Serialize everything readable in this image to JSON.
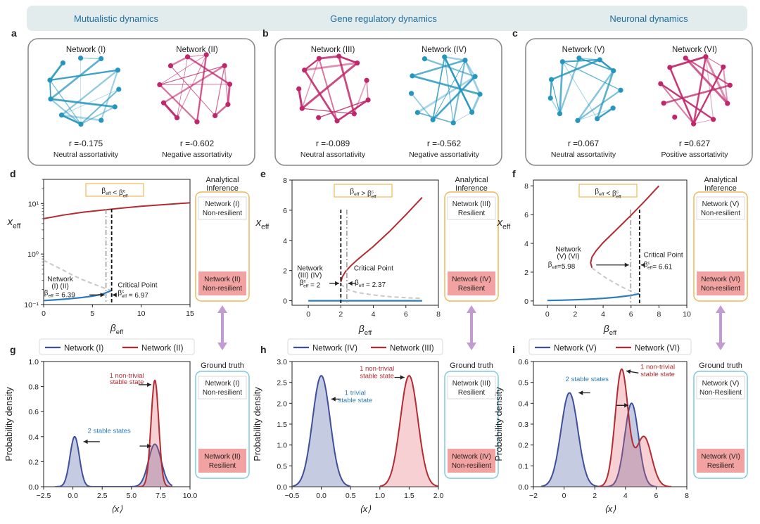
{
  "header": {
    "columns": [
      "Mutualistic dynamics",
      "Gene regulatory dynamics",
      "Neuronal dynamics"
    ],
    "color": "#1f6f9f"
  },
  "colors": {
    "teal": "#2596be",
    "magenta": "#c0266a",
    "red": "#b22c33",
    "blue": "#2d7cbb",
    "navy": "#3f4f9a",
    "dashed_gray": "#c8c8c8",
    "orange_box": "#f0b85a",
    "cyan_box": "#7fc8e0",
    "resilience_fill": "#f2a3a1",
    "arrow": "#c39bd3"
  },
  "panels_networks": [
    {
      "letter": "a",
      "nets": [
        {
          "title": "Network (I)",
          "r": "r =-0.175",
          "desc": "Neutral assortativity",
          "color": "teal"
        },
        {
          "title": "Network (II)",
          "r": "r =-0.602",
          "desc": "Negative assortativity",
          "color": "magenta"
        }
      ]
    },
    {
      "letter": "b",
      "nets": [
        {
          "title": "Network (III)",
          "r": "r =-0.089",
          "desc": "Neutral assortativity",
          "color": "magenta"
        },
        {
          "title": "Network (IV)",
          "r": "r =-0.562",
          "desc": "Negative assortativity",
          "color": "teal"
        }
      ]
    },
    {
      "letter": "c",
      "nets": [
        {
          "title": "Network (V)",
          "r": "r =0.067",
          "desc": "Neutral assortativity",
          "color": "teal"
        },
        {
          "title": "Network (VI)",
          "r": "r =0.627",
          "desc": "Positive assortativity",
          "color": "magenta"
        }
      ]
    }
  ],
  "chart_data": [
    {
      "id": "d",
      "type": "line",
      "scale": "log",
      "xlabel": "β_eff",
      "ylabel": "x_eff",
      "xlim": [
        0,
        15
      ],
      "ylim": [
        0.1,
        30
      ],
      "xticks": [
        0,
        5,
        10,
        15
      ],
      "yticks": [
        {
          "v": 0.1,
          "label": "10⁻¹"
        },
        {
          "v": 1,
          "label": "10⁰"
        },
        {
          "v": 10,
          "label": "10¹"
        }
      ],
      "series": [
        {
          "name": "upper stable",
          "style": "upper",
          "x": [
            0,
            2,
            4,
            6,
            8,
            10,
            12,
            14,
            15
          ],
          "y": [
            5.0,
            5.9,
            6.7,
            7.4,
            8.1,
            8.8,
            9.4,
            10.0,
            10.3
          ]
        },
        {
          "name": "unstable",
          "style": "unstable",
          "x": [
            0,
            1,
            2,
            3,
            4,
            5,
            6,
            6.9
          ],
          "y": [
            0.75,
            0.6,
            0.48,
            0.38,
            0.31,
            0.26,
            0.22,
            0.19
          ]
        },
        {
          "name": "lower stable",
          "style": "lower",
          "x": [
            0,
            1,
            2,
            3,
            4,
            5,
            6,
            6.97
          ],
          "y": [
            0.12,
            0.123,
            0.127,
            0.132,
            0.138,
            0.147,
            0.16,
            0.19
          ]
        }
      ],
      "vlines": [
        {
          "x": 6.39,
          "style": "dashdot"
        },
        {
          "x": 6.97,
          "style": "dashed"
        }
      ],
      "condition": "β_eff < β^c_eff",
      "annotations": [
        {
          "text": "Network",
          "x": 1.7,
          "y": 0.29,
          "anchor": "middle"
        },
        {
          "text": "(I) (II)",
          "x": 1.7,
          "y": 0.21,
          "anchor": "middle"
        },
        {
          "text": "β_eff = 6.39",
          "x": 0.05,
          "y": 0.155,
          "anchor": "start"
        },
        {
          "text": "Critical Point",
          "x": 7.6,
          "y": 0.22,
          "anchor": "start"
        },
        {
          "text": "β^c_eff = 6.97",
          "x": 7.6,
          "y": 0.155,
          "anchor": "start"
        }
      ],
      "arrows": [
        {
          "from": [
            4.7,
            0.155
          ],
          "to": [
            6.25,
            0.155
          ]
        },
        {
          "from": [
            7.5,
            0.155
          ],
          "to": [
            7.05,
            0.155
          ]
        }
      ],
      "inference": {
        "title_line1": "Analytical",
        "title_line2": "Inference",
        "top": [
          "Network (I)",
          "Non-resilient"
        ],
        "bottom": [
          "Network (II)",
          "Non-resilient"
        ]
      }
    },
    {
      "id": "e",
      "type": "line",
      "scale": "linear",
      "xlabel": "β_eff",
      "ylabel": "x_eff",
      "xlim": [
        -1,
        8
      ],
      "ylim": [
        -0.3,
        8
      ],
      "xticks": [
        0,
        2,
        4,
        6,
        8
      ],
      "yticks": [
        {
          "v": 0,
          "label": "0"
        },
        {
          "v": 2,
          "label": "2"
        },
        {
          "v": 4,
          "label": "4"
        },
        {
          "v": 6,
          "label": "6"
        },
        {
          "v": 8,
          "label": "8"
        }
      ],
      "series": [
        {
          "name": "upper stable",
          "style": "upper",
          "x": [
            2,
            2.1,
            2.3,
            2.6,
            3,
            3.5,
            4,
            5,
            6,
            7
          ],
          "y": [
            1.25,
            1.6,
            1.95,
            2.3,
            2.7,
            3.15,
            3.6,
            4.6,
            5.7,
            6.85
          ]
        },
        {
          "name": "unstable",
          "style": "unstable",
          "x": [
            2.0,
            2.4,
            3,
            4,
            5,
            6,
            7
          ],
          "y": [
            1.1,
            0.75,
            0.55,
            0.38,
            0.27,
            0.2,
            0.15
          ]
        },
        {
          "name": "trivial stable",
          "style": "lower",
          "x": [
            0,
            7
          ],
          "y": [
            0,
            0
          ]
        }
      ],
      "vlines": [
        {
          "x": 2.0,
          "style": "dashed"
        },
        {
          "x": 2.37,
          "style": "dashdot"
        }
      ],
      "condition": "β_eff > β^c_eff",
      "annotations": [
        {
          "text": "Network",
          "x": 0.1,
          "y": 2.0,
          "anchor": "middle"
        },
        {
          "text": "(III) (IV)",
          "x": 0.1,
          "y": 1.55,
          "anchor": "middle"
        },
        {
          "text": "β^c_eff = 2",
          "x": 0.1,
          "y": 1.05,
          "anchor": "middle"
        },
        {
          "text": "Critical Point",
          "x": 2.8,
          "y": 2.0,
          "anchor": "start"
        },
        {
          "text": "β_eff = 2.37",
          "x": 2.85,
          "y": 1.05,
          "anchor": "start"
        }
      ],
      "arrows": [
        {
          "from": [
            1.3,
            1.15
          ],
          "to": [
            1.9,
            1.15
          ]
        },
        {
          "from": [
            2.95,
            1.15
          ],
          "to": [
            2.45,
            1.15
          ]
        }
      ],
      "inference": {
        "title_line1": "Analytical",
        "title_line2": "Inference",
        "top": [
          "Network (III)",
          "Resilient"
        ],
        "bottom": [
          "Network (IV)",
          "Resilient"
        ]
      }
    },
    {
      "id": "f",
      "type": "line",
      "scale": "linear",
      "xlabel": "β_eff",
      "ylabel": "x_eff",
      "xlim": [
        -1,
        10
      ],
      "ylim": [
        -0.3,
        8.4
      ],
      "xticks": [
        0,
        2,
        4,
        6,
        8,
        10
      ],
      "yticks": [
        {
          "v": 0,
          "label": "0"
        },
        {
          "v": 2,
          "label": "2"
        },
        {
          "v": 4,
          "label": "4"
        },
        {
          "v": 6,
          "label": "6"
        },
        {
          "v": 8,
          "label": "8"
        }
      ],
      "series": [
        {
          "name": "upper stable",
          "style": "upper",
          "x": [
            3.2,
            3.1,
            3.2,
            3.5,
            4,
            5,
            6,
            7,
            8
          ],
          "y": [
            2.3,
            2.65,
            3.05,
            3.5,
            4.05,
            5.0,
            5.95,
            6.95,
            8.0
          ]
        },
        {
          "name": "unstable",
          "style": "unstable",
          "x": [
            3.2,
            3.6,
            4.2,
            5.0,
            5.7,
            6.3
          ],
          "y": [
            2.3,
            2.0,
            1.6,
            1.15,
            0.8,
            0.55
          ]
        },
        {
          "name": "lower stable",
          "style": "lower",
          "x": [
            0,
            1,
            2,
            3,
            4,
            5,
            6,
            6.6
          ],
          "y": [
            0.03,
            0.05,
            0.08,
            0.12,
            0.18,
            0.26,
            0.38,
            0.5
          ]
        }
      ],
      "vlines": [
        {
          "x": 5.98,
          "style": "dashdot"
        },
        {
          "x": 6.61,
          "style": "dashed"
        }
      ],
      "condition": "β_eff < β^c_eff",
      "annotations": [
        {
          "text": "Network",
          "x": 1.5,
          "y": 3.45,
          "anchor": "middle"
        },
        {
          "text": "(V) (VI)",
          "x": 1.5,
          "y": 2.95,
          "anchor": "middle"
        },
        {
          "text": "β_eff=5.98",
          "x": 0.05,
          "y": 2.4,
          "anchor": "start"
        },
        {
          "text": "Critical Point",
          "x": 6.9,
          "y": 3.05,
          "anchor": "start"
        },
        {
          "text": "β^c_eff= 6.61",
          "x": 6.9,
          "y": 2.4,
          "anchor": "start"
        }
      ],
      "arrows": [
        {
          "from": [
            3.5,
            2.5
          ],
          "to": [
            5.85,
            2.5
          ]
        },
        {
          "from": [
            6.85,
            2.5
          ],
          "to": [
            6.7,
            2.5
          ]
        }
      ],
      "inference": {
        "title_line1": "Analytical",
        "title_line2": "Inference",
        "top": [
          "Network (V)",
          "Non-resilient"
        ],
        "bottom": [
          "Network (VI)",
          "Non-resilient"
        ]
      }
    },
    {
      "id": "g",
      "type": "area",
      "xlabel": "⟨x⟩",
      "ylabel": "Probability density",
      "xlim": [
        -2.5,
        10
      ],
      "ylim": [
        0,
        1.0
      ],
      "xticks": [
        -2.5,
        0.0,
        2.5,
        5.0,
        7.5,
        10.0
      ],
      "xtick_labels": [
        "−2.5",
        "0.0",
        "2.5",
        "5.0",
        "7.5",
        "10.0"
      ],
      "yticks": [
        0.0,
        0.2,
        0.4,
        0.6,
        0.8,
        1.0
      ],
      "ytick_labels": [
        "0.0",
        "0.2",
        "0.4",
        "0.6",
        "0.8",
        "1.0"
      ],
      "legend": [
        {
          "name": "Network (I)",
          "color": "navy"
        },
        {
          "name": "Network (II)",
          "color": "red"
        }
      ],
      "densities": [
        {
          "name": "Network (I)",
          "color": "navy",
          "components": [
            {
              "w": 0.4,
              "mu": 0.15,
              "sd": 0.4
            },
            {
              "w": 0.34,
              "mu": 7.0,
              "sd": 0.55
            }
          ],
          "xmin": -1.5,
          "xmax": 8.5
        },
        {
          "name": "Network (II)",
          "color": "red",
          "components": [
            {
              "w": 0.85,
              "mu": 7.0,
              "sd": 0.33
            }
          ],
          "xmin": 5.5,
          "xmax": 8.5
        }
      ],
      "annotations": [
        {
          "text": "1 non-trivial",
          "x": 4.6,
          "y": 0.87,
          "color": "red"
        },
        {
          "text": "stable state",
          "x": 4.6,
          "y": 0.82,
          "color": "red"
        },
        {
          "text": "2 stable states",
          "x": 3.1,
          "y": 0.43,
          "color": "blue"
        }
      ],
      "arrows": [
        {
          "from": [
            5.6,
            0.815
          ],
          "to": [
            6.7,
            0.815
          ]
        },
        {
          "from": [
            2.3,
            0.36
          ],
          "to": [
            0.9,
            0.36
          ]
        },
        {
          "from": [
            5.7,
            0.325
          ],
          "to": [
            6.7,
            0.325
          ]
        }
      ],
      "truth": {
        "title": "Ground truth",
        "top": [
          "Network (I)",
          "Non-resilient"
        ],
        "bottom": [
          "Network (II)",
          "Resilient"
        ]
      }
    },
    {
      "id": "h",
      "type": "area",
      "xlabel": "⟨x⟩",
      "ylabel": "Probability density",
      "xlim": [
        -0.5,
        2.0
      ],
      "ylim": [
        0,
        3.0
      ],
      "xticks": [
        -0.5,
        0.0,
        0.5,
        1.0,
        1.5,
        2.0
      ],
      "xtick_labels": [
        "−0.5",
        "0.0",
        "0.5",
        "1.0",
        "1.5",
        "2.0"
      ],
      "yticks": [
        0.0,
        0.5,
        1.0,
        1.5,
        2.0,
        2.5,
        3.0
      ],
      "ytick_labels": [
        "0.0",
        "0.5",
        "1.0",
        "1.5",
        "2.0",
        "2.5",
        "3.0"
      ],
      "legend": [
        {
          "name": "Network (IV)",
          "color": "navy"
        },
        {
          "name": "Network (III)",
          "color": "red"
        }
      ],
      "densities": [
        {
          "name": "Network (IV)",
          "color": "navy",
          "components": [
            {
              "w": 2.66,
              "mu": 0.0,
              "sd": 0.15
            }
          ],
          "xmin": -0.5,
          "xmax": 0.5
        },
        {
          "name": "Network (III)",
          "color": "red",
          "components": [
            {
              "w": 2.66,
              "mu": 1.5,
              "sd": 0.15
            }
          ],
          "xmin": 1.0,
          "xmax": 2.0
        }
      ],
      "annotations": [
        {
          "text": "1 non-trivial",
          "x": 0.95,
          "y": 2.78,
          "color": "red"
        },
        {
          "text": "stable state",
          "x": 0.95,
          "y": 2.6,
          "color": "red"
        },
        {
          "text": "1 trivial",
          "x": 0.58,
          "y": 2.2,
          "color": "blue"
        },
        {
          "text": "stable state",
          "x": 0.58,
          "y": 2.02,
          "color": "blue"
        }
      ],
      "arrows": [
        {
          "from": [
            1.25,
            2.62
          ],
          "to": [
            1.42,
            2.62
          ]
        },
        {
          "from": [
            0.33,
            2.1
          ],
          "to": [
            0.17,
            2.1
          ]
        }
      ],
      "truth": {
        "title": "Ground truth",
        "top": [
          "Network (III)",
          "Resilient"
        ],
        "bottom": [
          "Network (IV)",
          "Non-resilient"
        ]
      }
    },
    {
      "id": "i",
      "type": "area",
      "xlabel": "⟨x⟩",
      "ylabel": "Probability density",
      "xlim": [
        -2,
        8
      ],
      "ylim": [
        0,
        0.6
      ],
      "xticks": [
        -2,
        0,
        2,
        4,
        6,
        8
      ],
      "xtick_labels": [
        "−2",
        "0",
        "2",
        "4",
        "6",
        "8"
      ],
      "yticks": [
        0.0,
        0.1,
        0.2,
        0.3,
        0.4,
        0.5,
        0.6
      ],
      "ytick_labels": [
        "0.0",
        "0.1",
        "0.2",
        "0.3",
        "0.4",
        "0.5",
        "0.6"
      ],
      "legend": [
        {
          "name": "Network (V)",
          "color": "navy"
        },
        {
          "name": "Network (VI)",
          "color": "red"
        }
      ],
      "densities": [
        {
          "name": "Network (V)",
          "color": "navy",
          "components": [
            {
              "w": 0.45,
              "mu": 0.35,
              "sd": 0.55
            },
            {
              "w": 0.4,
              "mu": 4.4,
              "sd": 0.45
            }
          ],
          "xmin": -1.5,
          "xmax": 6.0
        },
        {
          "name": "Network (VI)",
          "color": "red",
          "components": [
            {
              "w": 0.56,
              "mu": 3.75,
              "sd": 0.42
            },
            {
              "w": 0.24,
              "mu": 5.2,
              "sd": 0.5
            }
          ],
          "xmin": 2.2,
          "xmax": 7.0
        }
      ],
      "annotations": [
        {
          "text": "1 non-trivial",
          "x": 6.1,
          "y": 0.565,
          "color": "red"
        },
        {
          "text": "stable state",
          "x": 6.1,
          "y": 0.53,
          "color": "red"
        },
        {
          "text": "2 stable states",
          "x": 1.5,
          "y": 0.505,
          "color": "blue"
        }
      ],
      "arrows": [
        {
          "from": [
            4.85,
            0.545
          ],
          "to": [
            4.05,
            0.555
          ]
        },
        {
          "from": [
            1.7,
            0.45
          ],
          "to": [
            0.95,
            0.45
          ]
        },
        {
          "from": [
            3.4,
            0.39
          ],
          "to": [
            4.2,
            0.39
          ]
        }
      ],
      "truth": {
        "title": "Ground truth",
        "top": [
          "Network (V)",
          "Non-Resilient"
        ],
        "bottom": [
          "Network (VI)",
          "Resilient"
        ]
      }
    }
  ]
}
